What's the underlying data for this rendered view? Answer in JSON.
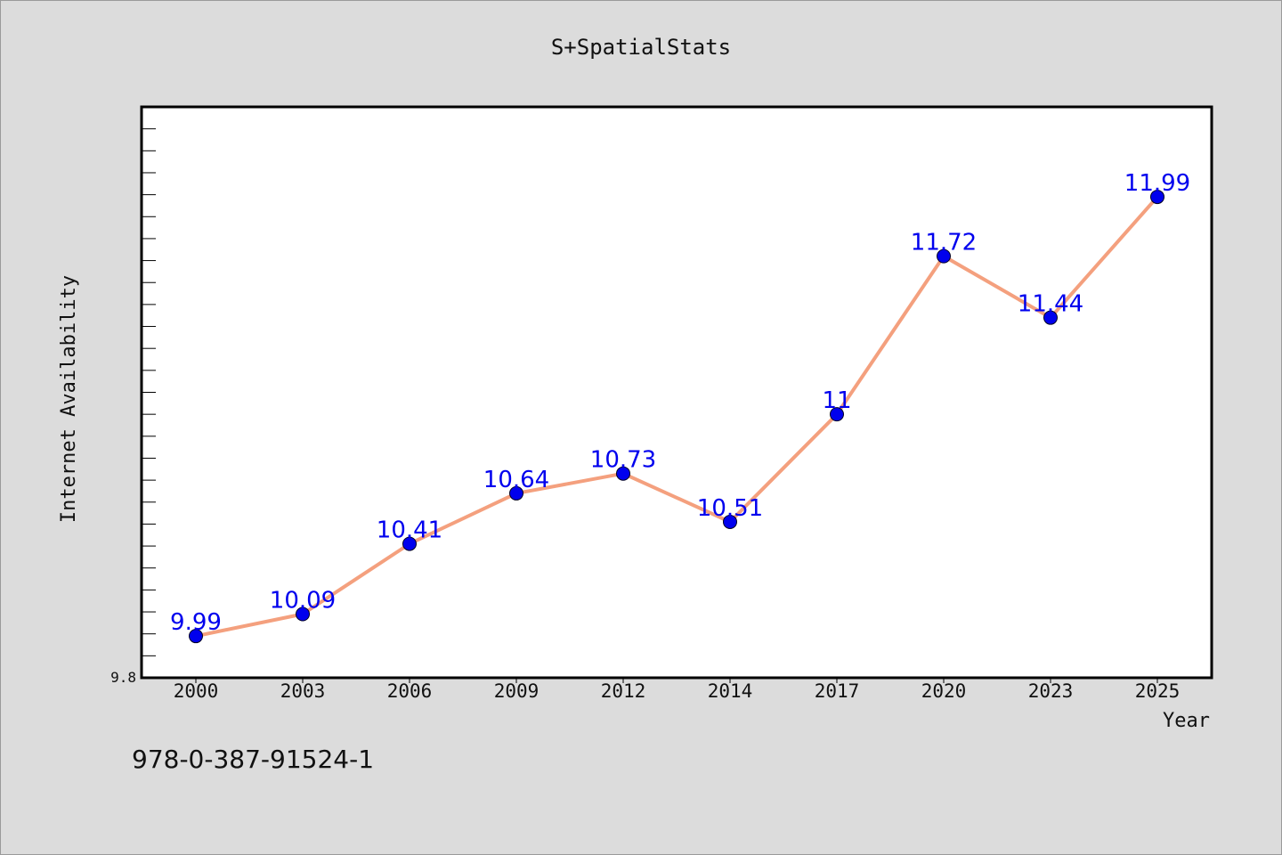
{
  "footer_text": "978-0-387-91524-1",
  "chart_data": {
    "type": "line",
    "title": "S+SpatialStats",
    "xlabel": "Year",
    "ylabel": "Internet Availability",
    "categories": [
      "2000",
      "2003",
      "2006",
      "2009",
      "2012",
      "2014",
      "2017",
      "2020",
      "2023",
      "2025"
    ],
    "series": [
      {
        "values": [
          9.99,
          10.09,
          10.41,
          10.64,
          10.73,
          10.51,
          11,
          11.72,
          11.44,
          11.99
        ],
        "line_color": "#f4a07e",
        "marker_color": "#0000ee"
      }
    ],
    "ylim": [
      9.8,
      12.4
    ],
    "y_tick_labels": [
      "9.8"
    ],
    "label_color": "#0000ee",
    "grid": false,
    "legend": "none"
  }
}
